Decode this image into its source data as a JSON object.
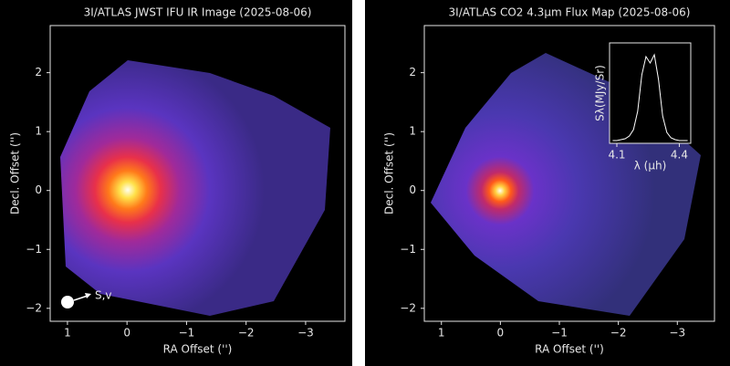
{
  "chart_data": [
    {
      "type": "image",
      "title": "3I/ATLAS JWST IFU IR Image (2025-08-06)",
      "x_label": "RA Offset ('')",
      "y_label": "Decl. Offset ('')",
      "annotation": "S,v",
      "xlim": [
        1.29,
        -3.66
      ],
      "ylim": [
        -2.22,
        2.8
      ],
      "xticks": [
        1,
        0,
        {
          "value": -1,
          "label": "−1"
        },
        {
          "value": -2,
          "label": "−2"
        },
        {
          "value": -3,
          "label": "−3"
        }
      ],
      "yticks": [
        {
          "value": -2,
          "label": "−2"
        },
        {
          "value": -1,
          "label": "−1"
        },
        0,
        1,
        2
      ]
    },
    {
      "type": "image",
      "title": "3I/ATLAS CO2 4.3µm Flux Map (2025-08-06)",
      "x_label": "RA Offset ('')",
      "y_label": "Decl. Offset ('')",
      "xlim": [
        1.29,
        -3.63
      ],
      "ylim": [
        -2.22,
        2.8
      ],
      "xticks": [
        1,
        0,
        {
          "value": -1,
          "label": "−1"
        },
        {
          "value": -2,
          "label": "−2"
        },
        {
          "value": -3,
          "label": "−3"
        }
      ],
      "yticks": [
        {
          "value": -2,
          "label": "−2"
        },
        {
          "value": -1,
          "label": "−1"
        },
        0,
        1,
        2
      ]
    },
    {
      "type": "line",
      "x_label": "λ (µh)",
      "y_label": "Sλ(MJy/Sr)",
      "color": "#ffffff",
      "x": [
        4.08,
        4.1,
        4.12,
        4.14,
        4.16,
        4.18,
        4.2,
        4.22,
        4.24,
        4.26,
        4.28,
        4.3,
        4.32,
        4.34,
        4.36,
        4.38,
        4.4,
        4.42,
        4.44
      ],
      "values": [
        0.03,
        0.03,
        0.04,
        0.05,
        0.08,
        0.15,
        0.35,
        0.75,
        0.95,
        0.88,
        0.97,
        0.7,
        0.3,
        0.12,
        0.06,
        0.04,
        0.03,
        0.03,
        0.03
      ],
      "xlim": [
        4.065,
        4.455
      ],
      "ylim": [
        0,
        1.1
      ],
      "xticks": [
        4.1,
        4.4
      ]
    }
  ]
}
